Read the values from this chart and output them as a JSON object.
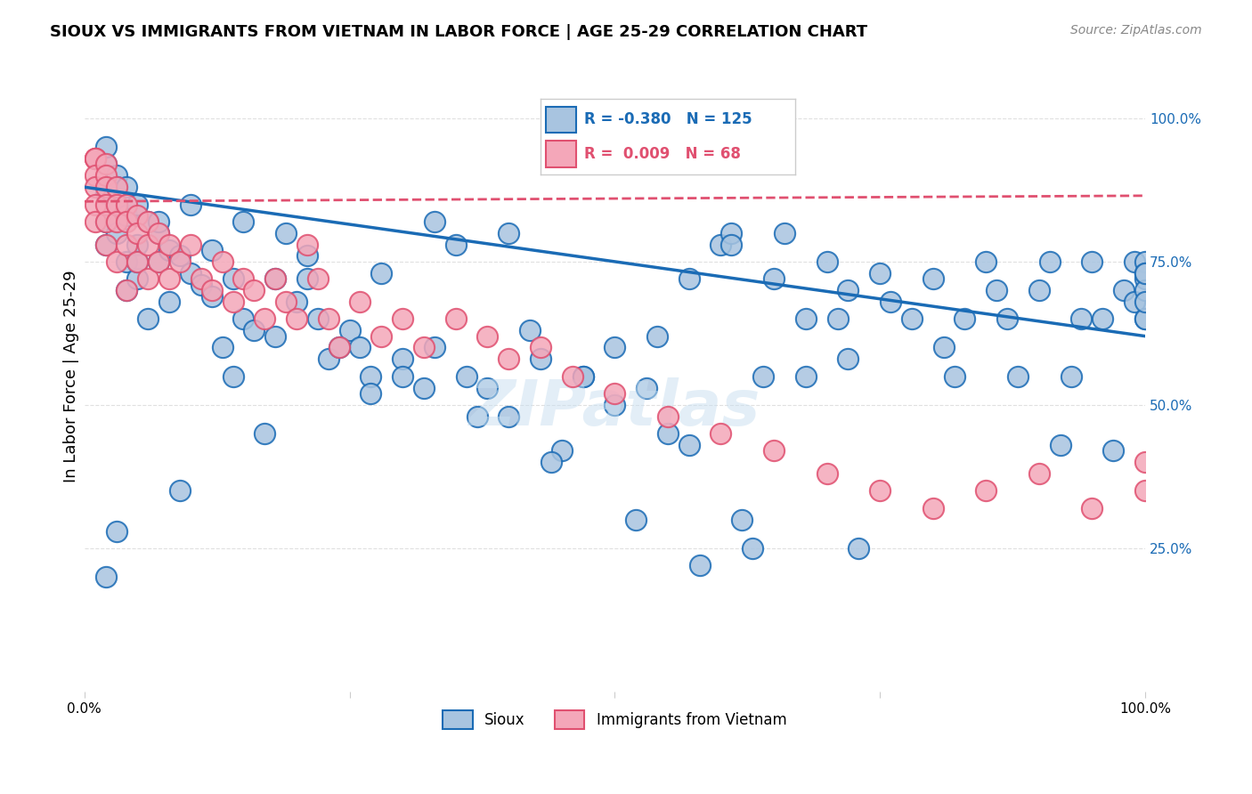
{
  "title": "SIOUX VS IMMIGRANTS FROM VIETNAM IN LABOR FORCE | AGE 25-29 CORRELATION CHART",
  "source": "Source: ZipAtlas.com",
  "xlabel": "",
  "ylabel": "In Labor Force | Age 25-29",
  "xlim": [
    0.0,
    1.0
  ],
  "ylim": [
    0.0,
    1.1
  ],
  "xtick_labels": [
    "0.0%",
    "100.0%"
  ],
  "ytick_labels": [
    "25.0%",
    "50.0%",
    "75.0%",
    "100.0%"
  ],
  "ytick_positions": [
    0.25,
    0.5,
    0.75,
    1.0
  ],
  "legend_blue_label": "Sioux",
  "legend_pink_label": "Immigrants from Vietnam",
  "R_blue": -0.38,
  "N_blue": 125,
  "R_pink": 0.009,
  "N_pink": 68,
  "blue_color": "#a8c4e0",
  "pink_color": "#f4a7b9",
  "blue_line_color": "#1a6bb5",
  "pink_line_color": "#e05070",
  "watermark": "ZIPatlas",
  "blue_scatter_x": [
    0.02,
    0.02,
    0.02,
    0.02,
    0.02,
    0.03,
    0.03,
    0.03,
    0.03,
    0.04,
    0.04,
    0.04,
    0.04,
    0.05,
    0.05,
    0.05,
    0.06,
    0.06,
    0.07,
    0.07,
    0.08,
    0.08,
    0.09,
    0.1,
    0.11,
    0.12,
    0.13,
    0.14,
    0.14,
    0.15,
    0.16,
    0.17,
    0.18,
    0.19,
    0.2,
    0.21,
    0.22,
    0.23,
    0.25,
    0.26,
    0.27,
    0.28,
    0.3,
    0.32,
    0.33,
    0.35,
    0.36,
    0.38,
    0.4,
    0.42,
    0.43,
    0.45,
    0.47,
    0.5,
    0.52,
    0.53,
    0.55,
    0.57,
    0.58,
    0.6,
    0.61,
    0.62,
    0.63,
    0.65,
    0.66,
    0.68,
    0.7,
    0.71,
    0.72,
    0.73,
    0.75,
    0.76,
    0.78,
    0.8,
    0.81,
    0.82,
    0.83,
    0.85,
    0.86,
    0.87,
    0.88,
    0.9,
    0.91,
    0.92,
    0.93,
    0.94,
    0.95,
    0.96,
    0.97,
    0.98,
    0.99,
    0.99,
    1.0,
    1.0,
    1.0,
    1.0,
    1.0,
    1.0,
    1.0,
    1.0,
    0.02,
    0.03,
    0.05,
    0.07,
    0.09,
    0.1,
    0.12,
    0.15,
    0.18,
    0.21,
    0.24,
    0.27,
    0.3,
    0.33,
    0.37,
    0.4,
    0.44,
    0.47,
    0.5,
    0.54,
    0.57,
    0.61,
    0.64,
    0.68,
    0.72
  ],
  "blue_scatter_y": [
    0.87,
    0.92,
    0.95,
    0.82,
    0.78,
    0.9,
    0.85,
    0.88,
    0.8,
    0.88,
    0.83,
    0.75,
    0.7,
    0.85,
    0.78,
    0.72,
    0.82,
    0.65,
    0.8,
    0.75,
    0.77,
    0.68,
    0.76,
    0.73,
    0.71,
    0.69,
    0.6,
    0.72,
    0.55,
    0.65,
    0.63,
    0.45,
    0.62,
    0.8,
    0.68,
    0.72,
    0.65,
    0.58,
    0.63,
    0.6,
    0.55,
    0.73,
    0.58,
    0.53,
    0.6,
    0.78,
    0.55,
    0.53,
    0.48,
    0.63,
    0.58,
    0.42,
    0.55,
    0.5,
    0.3,
    0.53,
    0.45,
    0.43,
    0.22,
    0.78,
    0.8,
    0.3,
    0.25,
    0.72,
    0.8,
    0.55,
    0.75,
    0.65,
    0.7,
    0.25,
    0.73,
    0.68,
    0.65,
    0.72,
    0.6,
    0.55,
    0.65,
    0.75,
    0.7,
    0.65,
    0.55,
    0.7,
    0.75,
    0.43,
    0.55,
    0.65,
    0.75,
    0.65,
    0.42,
    0.7,
    0.75,
    0.68,
    0.72,
    0.65,
    0.75,
    0.73,
    0.65,
    0.7,
    0.68,
    0.73,
    0.2,
    0.28,
    0.75,
    0.82,
    0.35,
    0.85,
    0.77,
    0.82,
    0.72,
    0.76,
    0.6,
    0.52,
    0.55,
    0.82,
    0.48,
    0.8,
    0.4,
    0.55,
    0.6,
    0.62,
    0.72,
    0.78,
    0.55,
    0.65,
    0.58
  ],
  "pink_scatter_x": [
    0.01,
    0.01,
    0.01,
    0.01,
    0.01,
    0.01,
    0.01,
    0.02,
    0.02,
    0.02,
    0.02,
    0.02,
    0.02,
    0.03,
    0.03,
    0.03,
    0.03,
    0.04,
    0.04,
    0.04,
    0.04,
    0.05,
    0.05,
    0.05,
    0.06,
    0.06,
    0.06,
    0.07,
    0.07,
    0.08,
    0.08,
    0.09,
    0.1,
    0.11,
    0.12,
    0.13,
    0.14,
    0.15,
    0.16,
    0.17,
    0.18,
    0.19,
    0.2,
    0.21,
    0.22,
    0.23,
    0.24,
    0.26,
    0.28,
    0.3,
    0.32,
    0.35,
    0.38,
    0.4,
    0.43,
    0.46,
    0.5,
    0.55,
    0.6,
    0.65,
    0.7,
    0.75,
    0.8,
    0.85,
    0.9,
    0.95,
    1.0,
    1.0
  ],
  "pink_scatter_y": [
    0.93,
    0.93,
    0.93,
    0.9,
    0.88,
    0.85,
    0.82,
    0.92,
    0.9,
    0.88,
    0.85,
    0.82,
    0.78,
    0.88,
    0.85,
    0.82,
    0.75,
    0.85,
    0.82,
    0.78,
    0.7,
    0.83,
    0.8,
    0.75,
    0.82,
    0.78,
    0.72,
    0.8,
    0.75,
    0.78,
    0.72,
    0.75,
    0.78,
    0.72,
    0.7,
    0.75,
    0.68,
    0.72,
    0.7,
    0.65,
    0.72,
    0.68,
    0.65,
    0.78,
    0.72,
    0.65,
    0.6,
    0.68,
    0.62,
    0.65,
    0.6,
    0.65,
    0.62,
    0.58,
    0.6,
    0.55,
    0.52,
    0.48,
    0.45,
    0.42,
    0.38,
    0.35,
    0.32,
    0.35,
    0.38,
    0.32,
    0.35,
    0.4
  ],
  "blue_trendline_x": [
    0.0,
    1.0
  ],
  "blue_trendline_y_start": 0.88,
  "blue_trendline_y_end": 0.62,
  "pink_trendline_x": [
    0.0,
    1.0
  ],
  "pink_trendline_y_start": 0.855,
  "pink_trendline_y_end": 0.865,
  "grid_color": "#e0e0e0",
  "background_color": "#ffffff"
}
